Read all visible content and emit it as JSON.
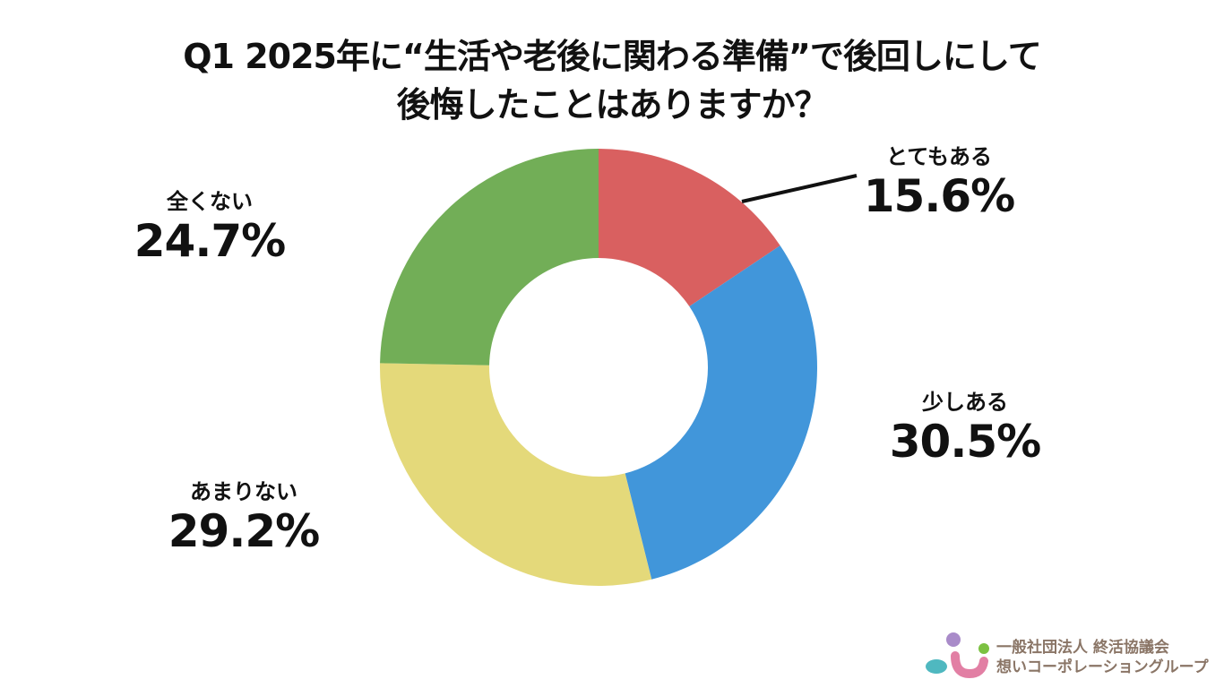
{
  "title": {
    "line1": "Q1 2025年に“生活や老後に関わる準備”で後回しにして",
    "line2": "後悔したことはありますか？"
  },
  "labels": [
    {
      "category": "とてもある",
      "percent": "15.6%"
    },
    {
      "category": "少しある",
      "percent": "30.5%"
    },
    {
      "category": "あまりない",
      "percent": "29.2%"
    },
    {
      "category": "全くない",
      "percent": "24.7%"
    }
  ],
  "logo": {
    "line1": "一般社団法人 終活協議会",
    "line2": "想いコーポレーショングループ"
  },
  "chart_data": {
    "type": "pie",
    "subtype": "donut",
    "title": "Q1 2025年に“生活や老後に関わる準備”で後回しにして後悔したことはありますか？",
    "categories": [
      "とてもある",
      "少しある",
      "あまりない",
      "全くない"
    ],
    "values": [
      15.6,
      30.5,
      29.2,
      24.7
    ],
    "colors": [
      "#d96060",
      "#4196da",
      "#e4d97a",
      "#72ae57"
    ],
    "start_angle": "12 o'clock, clockwise",
    "legend": "none (direct labels)"
  }
}
